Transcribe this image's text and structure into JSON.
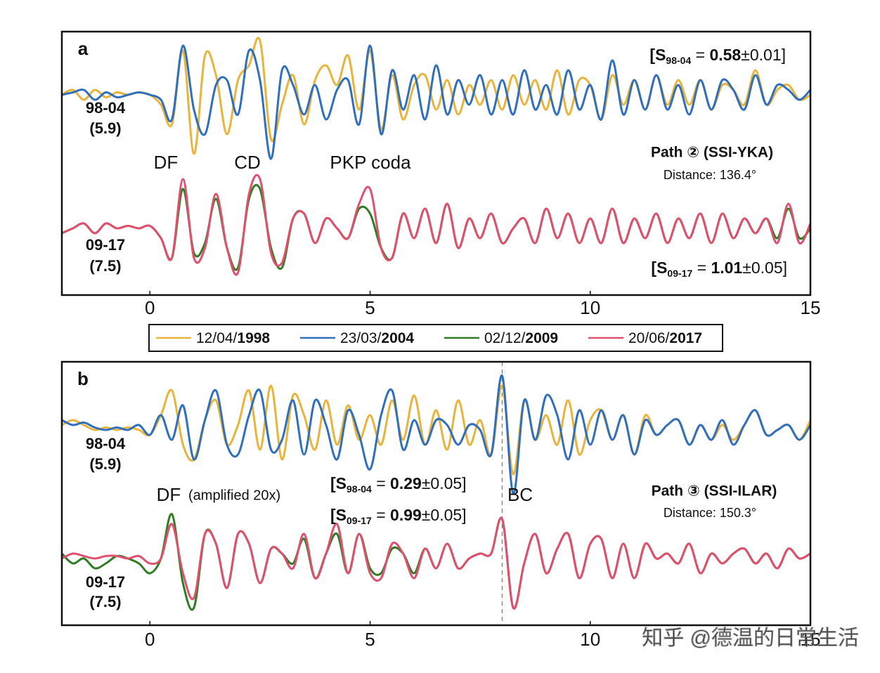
{
  "chart_data": {
    "type": "line",
    "legend": [
      {
        "date": "12/04/",
        "year": "1998",
        "color": "#e8b43c"
      },
      {
        "date": "23/03/",
        "year": "2004",
        "color": "#2f6fbd"
      },
      {
        "date": "02/12/",
        "year": "2009",
        "color": "#2e7d24"
      },
      {
        "date": "20/06/",
        "year": "2017",
        "color": "#e0506e"
      }
    ],
    "x": [
      -2,
      -1.75,
      -1.5,
      -1.25,
      -1,
      -0.75,
      -0.5,
      -0.25,
      0,
      0.25,
      0.5,
      0.75,
      1,
      1.25,
      1.5,
      1.75,
      2,
      2.25,
      2.5,
      2.75,
      3,
      3.25,
      3.5,
      3.75,
      4,
      4.25,
      4.5,
      4.75,
      5,
      5.25,
      5.5,
      5.75,
      6,
      6.25,
      6.5,
      6.75,
      7,
      7.25,
      7.5,
      7.75,
      8,
      8.25,
      8.5,
      8.75,
      9,
      9.25,
      9.5,
      9.75,
      10,
      10.25,
      10.5,
      10.75,
      11,
      11.25,
      11.5,
      11.75,
      12,
      12.25,
      12.5,
      12.75,
      13,
      13.25,
      13.5,
      13.75,
      14,
      14.25,
      14.5,
      14.75,
      15
    ],
    "xlim": [
      -2,
      15
    ],
    "xticks": [
      0,
      5,
      10,
      15
    ],
    "panels": [
      {
        "label": "a",
        "traces": [
          {
            "name": "98-04",
            "magnitude": "(5.9)",
            "series": [
              {
                "color": "#e8b43c",
                "values": [
                  0,
                  0.1,
                  -0.1,
                  0.1,
                  -0.05,
                  0.05,
                  0,
                  0.05,
                  0,
                  -0.2,
                  -0.6,
                  0.9,
                  -1.2,
                  0.8,
                  0.4,
                  -0.8,
                  0.3,
                  0.6,
                  1.1,
                  -0.9,
                  -0.2,
                  0.4,
                  -0.6,
                  0.3,
                  0.6,
                  0.2,
                  0.8,
                  -0.3,
                  0.9,
                  -0.7,
                  0.4,
                  -0.5,
                  0.2,
                  0.4,
                  -0.3,
                  0.3,
                  -0.4,
                  0.2,
                  -0.2,
                  0.3,
                  -0.3,
                  0.4,
                  -0.2,
                  0.3,
                  -0.3,
                  0.5,
                  -0.4,
                  0.3,
                  0.2,
                  -0.5,
                  0.4,
                  -0.2,
                  0.3,
                  -0.3,
                  0.4,
                  -0.2,
                  0.3,
                  -0.2,
                  0.3,
                  -0.3,
                  0.2,
                  0.1,
                  -0.2,
                  0.5,
                  -0.2,
                  0.1,
                  0.2,
                  -0.1,
                  0
                ]
              },
              {
                "color": "#2f6fbd",
                "values": [
                  0,
                  0.05,
                  0.1,
                  -0.1,
                  0.05,
                  -0.05,
                  0,
                  0.05,
                  0,
                  -0.1,
                  -0.5,
                  1.0,
                  -0.3,
                  -0.8,
                  0.2,
                  0.3,
                  -0.4,
                  0.9,
                  0.3,
                  -1.3,
                  0.5,
                  0.2,
                  -0.4,
                  0.2,
                  -0.5,
                  0.1,
                  0.3,
                  -0.6,
                  1.0,
                  -0.8,
                  0.5,
                  -0.3,
                  0.4,
                  -0.5,
                  0.6,
                  -0.4,
                  0.3,
                  -0.2,
                  0.4,
                  -0.4,
                  0.3,
                  -0.4,
                  0.5,
                  -0.3,
                  0.2,
                  -0.4,
                  0.5,
                  -0.3,
                  0.2,
                  -0.5,
                  0.7,
                  -0.4,
                  0.3,
                  -0.3,
                  0.4,
                  -0.3,
                  0.2,
                  -0.4,
                  0.3,
                  -0.3,
                  0.3,
                  0.1,
                  -0.3,
                  0.4,
                  -0.2,
                  0.2,
                  0.1,
                  -0.1,
                  0.1
                ]
              }
            ]
          },
          {
            "name": "09-17",
            "magnitude": "(7.5)",
            "series": [
              {
                "color": "#2e7d24",
                "values": [
                  -0.1,
                  0,
                  0.1,
                  -0.1,
                  0.1,
                  0,
                  0.05,
                  0,
                  0.05,
                  -0.2,
                  -0.6,
                  0.8,
                  -0.5,
                  -0.3,
                  0.6,
                  -0.4,
                  -0.8,
                  0.6,
                  0.8,
                  -0.4,
                  -0.8,
                  0.2,
                  0.3,
                  -0.3,
                  0.2,
                  0,
                  -0.2,
                  0.4,
                  0.3,
                  -0.4,
                  -0.6,
                  0.3,
                  -0.2,
                  0.4,
                  -0.3,
                  0.5,
                  -0.4,
                  0.2,
                  -0.2,
                  0.3,
                  -0.3,
                  0,
                  0.2,
                  -0.3,
                  0.4,
                  -0.2,
                  0.3,
                  -0.3,
                  0.2,
                  -0.3,
                  0.4,
                  -0.3,
                  0.2,
                  -0.2,
                  0.3,
                  -0.3,
                  0.2,
                  -0.2,
                  0.3,
                  -0.3,
                  0.3,
                  -0.2,
                  0.2,
                  -0.1,
                  0.2,
                  -0.2,
                  0.4,
                  -0.2,
                  0
                ]
              },
              {
                "color": "#e0506e",
                "values": [
                  -0.1,
                  0,
                  0.1,
                  -0.1,
                  0.1,
                  0,
                  0.05,
                  0,
                  0.05,
                  -0.2,
                  -0.6,
                  1.0,
                  -0.6,
                  -0.4,
                  0.7,
                  -0.4,
                  -0.9,
                  0.7,
                  1.0,
                  -0.5,
                  -0.7,
                  0.2,
                  0.3,
                  -0.3,
                  0.2,
                  0,
                  -0.2,
                  0.5,
                  0.8,
                  -0.4,
                  -0.6,
                  0.3,
                  -0.2,
                  0.4,
                  -0.3,
                  0.5,
                  -0.4,
                  0.2,
                  -0.2,
                  0.3,
                  -0.3,
                  0,
                  0.2,
                  -0.3,
                  0.4,
                  -0.2,
                  0.3,
                  -0.3,
                  0.2,
                  -0.3,
                  0.4,
                  -0.3,
                  0.2,
                  -0.2,
                  0.3,
                  -0.3,
                  0.2,
                  -0.2,
                  0.3,
                  -0.3,
                  0.3,
                  -0.2,
                  0.2,
                  -0.1,
                  0.2,
                  -0.3,
                  0.5,
                  -0.3,
                  0.1
                ]
              }
            ]
          }
        ],
        "similarity": [
          {
            "open": "[S",
            "sub": "98-04",
            "eq": " = ",
            "value": "0.58",
            "rest": "±0.01]"
          },
          {
            "open": "[S",
            "sub": "09-17",
            "eq": " = ",
            "value": "1.01",
            "rest": "±0.05]"
          }
        ],
        "path": "Path ② (SSI-YKA)",
        "distance": "Distance: 136.4°",
        "phases": [
          "DF",
          "CD",
          "PKP coda"
        ]
      },
      {
        "label": "b",
        "traces": [
          {
            "name": "98-04",
            "magnitude": "(5.9)",
            "series": [
              {
                "color": "#e8b43c",
                "values": [
                  0.1,
                  0.2,
                  0.1,
                  0,
                  0.05,
                  0,
                  0.05,
                  0,
                  -0.1,
                  0.3,
                  0.8,
                  -0.3,
                  -0.6,
                  0.2,
                  0.6,
                  -0.3,
                  0.1,
                  0.8,
                  -0.4,
                  0.9,
                  -0.6,
                  0.7,
                  0.3,
                  -0.4,
                  0.6,
                  -0.3,
                  0.5,
                  -0.2,
                  0.3,
                  -0.3,
                  0.6,
                  -0.2,
                  0.7,
                  -0.3,
                  0.4,
                  -0.4,
                  0.6,
                  -0.3,
                  0.2,
                  -0.5,
                  0.9,
                  -0.9,
                  0.6,
                  -0.2,
                  0.3,
                  -0.3,
                  0.6,
                  -0.5,
                  0.2,
                  0.4,
                  -0.2,
                  0.3,
                  -0.5,
                  0.3,
                  -0.1,
                  0.1,
                  0.2,
                  -0.3,
                  0.1,
                  -0.2,
                  0.1,
                  -0.2,
                  0.1,
                  0.4,
                  -0.1,
                  0,
                  0.1,
                  -0.2,
                  0.2
                ]
              },
              {
                "color": "#2f6fbd",
                "values": [
                  0.2,
                  0.1,
                  0.15,
                  0.05,
                  0,
                  0.05,
                  0,
                  0.1,
                  -0.1,
                  0.3,
                  -0.2,
                  0.5,
                  -0.6,
                  0.2,
                  0.8,
                  -0.3,
                  -0.5,
                  0.3,
                  0.8,
                  -0.4,
                  -0.2,
                  0.6,
                  -0.5,
                  0.6,
                  0.1,
                  -0.6,
                  0.4,
                  -0.1,
                  -0.8,
                  0.3,
                  0.8,
                  -0.4,
                  0.2,
                  -0.3,
                  0.2,
                  0.1,
                  -0.3,
                  0.1,
                  0,
                  -0.5,
                  1.1,
                  -1.3,
                  0.6,
                  -0.2,
                  0.7,
                  0.3,
                  -0.6,
                  0.4,
                  -0.3,
                  0.4,
                  -0.2,
                  0.3,
                  -0.5,
                  0.2,
                  -0.1,
                  0.1,
                  0.2,
                  -0.3,
                  0.1,
                  -0.2,
                  0.2,
                  -0.3,
                  0.1,
                  0.4,
                  -0.1,
                  0,
                  0.1,
                  -0.2,
                  0.1
                ]
              }
            ]
          },
          {
            "name": "09-17",
            "magnitude": "(7.5)",
            "series": [
              {
                "color": "#2e7d24",
                "values": [
                  0.1,
                  -0.1,
                  0,
                  -0.2,
                  -0.1,
                  0.05,
                  0,
                  -0.1,
                  -0.3,
                  0,
                  0.9,
                  -0.5,
                  -1.0,
                  0.5,
                  0.3,
                  -0.6,
                  0.5,
                  0.3,
                  -0.5,
                  0.2,
                  0.1,
                  -0.1,
                  0.4,
                  -0.4,
                  0.1,
                  0.5,
                  -0.3,
                  0.5,
                  -0.2,
                  -0.3,
                  0.2,
                  0.1,
                  -0.3,
                  0.2,
                  -0.2,
                  0.3,
                  -0.2,
                  0,
                  0.1,
                  0.1,
                  0.8,
                  -1.0,
                  -0.1,
                  0.5,
                  -0.3,
                  0.2,
                  0.5,
                  -0.4,
                  0.3,
                  0.4,
                  -0.4,
                  0.3,
                  -0.4,
                  0.3,
                  0,
                  0.1,
                  -0.1,
                  0.3,
                  -0.3,
                  0.1,
                  -0.1,
                  0.1,
                  0.2,
                  -0.1,
                  0.1,
                  -0.2,
                  0.2,
                  0,
                  0.1
                ]
              },
              {
                "color": "#e0506e",
                "values": [
                  0,
                  0.1,
                  0.05,
                  0,
                  0.05,
                  0.05,
                  0,
                  0.05,
                  -0.1,
                  0,
                  0.7,
                  -0.3,
                  -0.8,
                  0.5,
                  0.3,
                  -0.6,
                  0.5,
                  0.3,
                  -0.5,
                  0.2,
                  0.1,
                  -0.2,
                  0.5,
                  -0.4,
                  0.1,
                  0.7,
                  -0.3,
                  0.5,
                  -0.3,
                  -0.4,
                  0.3,
                  0.1,
                  -0.4,
                  0.2,
                  -0.2,
                  0.3,
                  -0.2,
                  0,
                  0.1,
                  0.1,
                  0.8,
                  -1.0,
                  -0.1,
                  0.5,
                  -0.3,
                  0.2,
                  0.5,
                  -0.4,
                  0.3,
                  0.4,
                  -0.4,
                  0.3,
                  -0.4,
                  0.3,
                  0,
                  0.1,
                  -0.1,
                  0.3,
                  -0.3,
                  0.1,
                  -0.1,
                  0.1,
                  0.2,
                  -0.1,
                  0.1,
                  -0.2,
                  0.2,
                  0,
                  0.1
                ]
              }
            ]
          }
        ],
        "similarity": [
          {
            "open": "[S",
            "sub": "98-04",
            "eq": " = ",
            "value": "0.29",
            "rest": "±0.05]"
          },
          {
            "open": "[S",
            "sub": "09-17",
            "eq": " = ",
            "value": "0.99",
            "rest": "±0.05]"
          }
        ],
        "path": "Path ③ (SSI-ILAR)",
        "distance": "Distance: 150.3°",
        "phases": [
          "DF",
          "(amplified 20x)",
          "BC"
        ],
        "divider": 8
      }
    ],
    "watermark": "知乎 @德温的日常生活"
  }
}
